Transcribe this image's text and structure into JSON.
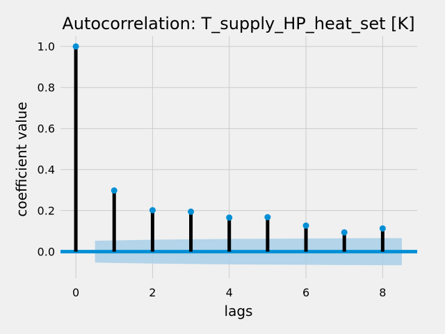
{
  "chart_data": {
    "type": "stem",
    "title": "Autocorrelation: T_supply_HP_heat_set [K]",
    "xlabel": "lags",
    "ylabel": "coefficient value",
    "xlim": [
      -0.4,
      8.9
    ],
    "ylim": [
      -0.13,
      1.05
    ],
    "xticks": [
      0,
      2,
      4,
      6,
      8
    ],
    "yticks": [
      0.0,
      0.2,
      0.4,
      0.6,
      0.8,
      1.0
    ],
    "grid": true,
    "series": [
      {
        "lags": [
          0,
          1,
          2,
          3,
          4,
          5,
          6,
          7,
          8
        ],
        "values": [
          1.0,
          0.298,
          0.202,
          0.195,
          0.166,
          0.168,
          0.127,
          0.094,
          0.113
        ],
        "color": "#008fd5"
      }
    ],
    "confidence_band": {
      "x": [
        0.5,
        1,
        2,
        3,
        4,
        5,
        6,
        7,
        8,
        8.5
      ],
      "upper": [
        0.053,
        0.055,
        0.058,
        0.06,
        0.062,
        0.063,
        0.064,
        0.065,
        0.066,
        0.066
      ],
      "lower": [
        -0.053,
        -0.055,
        -0.058,
        -0.06,
        -0.062,
        -0.063,
        -0.064,
        -0.065,
        -0.066,
        -0.066
      ],
      "color": "#a8cfe8"
    },
    "zero_line_color": "#008fd5",
    "stem_color": "#000000"
  }
}
